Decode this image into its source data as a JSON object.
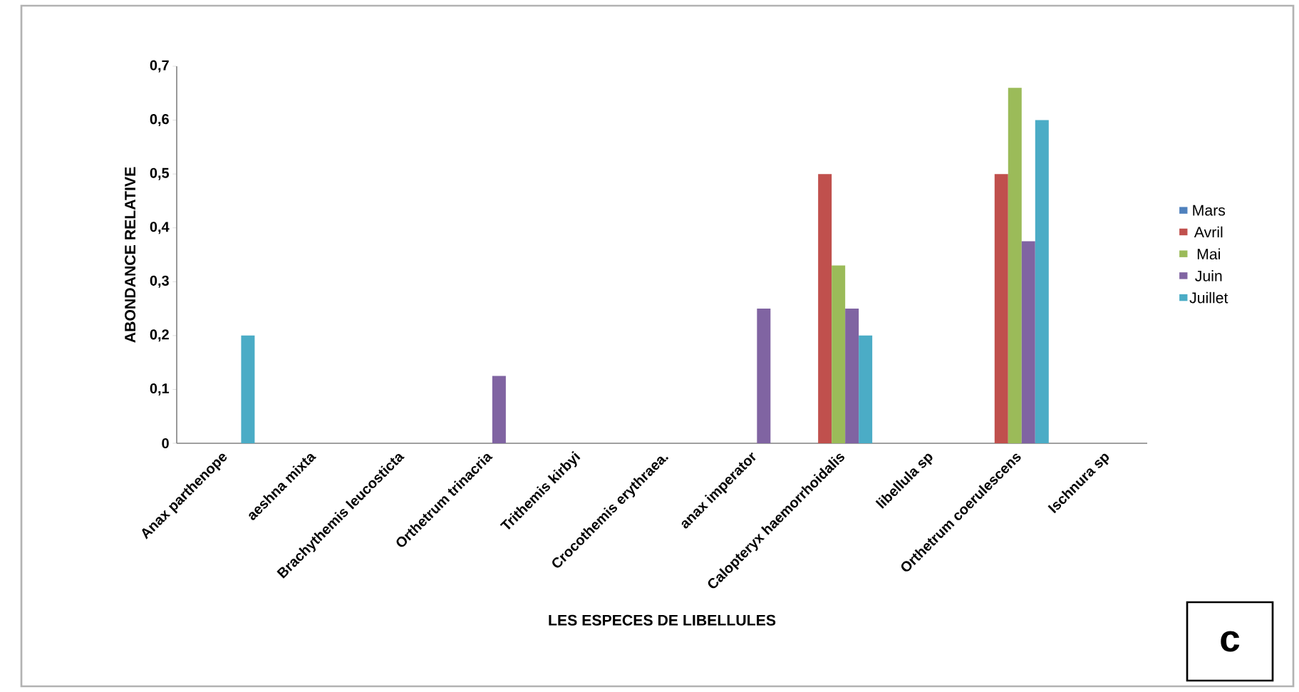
{
  "chart_data": {
    "type": "bar",
    "xlabel": "LES ESPECES  DE LIBELLULES",
    "ylabel": "ABONDANCE  RELATIVE",
    "categories": [
      "Anax parthenope",
      "aeshna mixta",
      "Brachythemis leucosticta",
      "Orthetrum trinacria",
      "Trithemis kirbyi",
      "Crocothemis erythraea.",
      "anax imperator",
      "Calopteryx haemorrhoidalis",
      "libellula sp",
      "Orthetrum coerulescens",
      "Ischnura sp"
    ],
    "series": [
      {
        "name": "Mars",
        "color": "#4f81bd",
        "values": [
          0,
          0,
          0,
          0,
          0,
          0,
          0,
          0,
          0,
          0,
          0
        ]
      },
      {
        "name": "Avril",
        "color": "#c0504d",
        "values": [
          0,
          0,
          0,
          0,
          0,
          0,
          0,
          0.5,
          0,
          0.5,
          0
        ]
      },
      {
        "name": "Mai",
        "color": "#9bbb59",
        "values": [
          0,
          0,
          0,
          0,
          0,
          0,
          0,
          0.33,
          0,
          0.66,
          0
        ]
      },
      {
        "name": "Juin",
        "color": "#8064a2",
        "values": [
          0,
          0,
          0,
          0.125,
          0,
          0,
          0.25,
          0.25,
          0,
          0.375,
          0
        ]
      },
      {
        "name": "Juillet",
        "color": "#4bacc6",
        "values": [
          0.2,
          0,
          0,
          0,
          0,
          0,
          0,
          0.2,
          0,
          0.6,
          0
        ]
      }
    ],
    "ylim": [
      0,
      0.7
    ],
    "yticks": [
      0,
      {
        "value": 0.1,
        "label": "0,1"
      },
      {
        "value": 0.2,
        "label": "0,2"
      },
      {
        "value": 0.3,
        "label": "0,3"
      },
      {
        "value": 0.4,
        "label": "0,4"
      },
      {
        "value": 0.5,
        "label": "0,5"
      },
      {
        "value": 0.6,
        "label": "0,6"
      },
      {
        "value": 0.7,
        "label": "0,7"
      }
    ],
    "grid": false,
    "legend": "right",
    "annotations": [
      "c"
    ]
  }
}
